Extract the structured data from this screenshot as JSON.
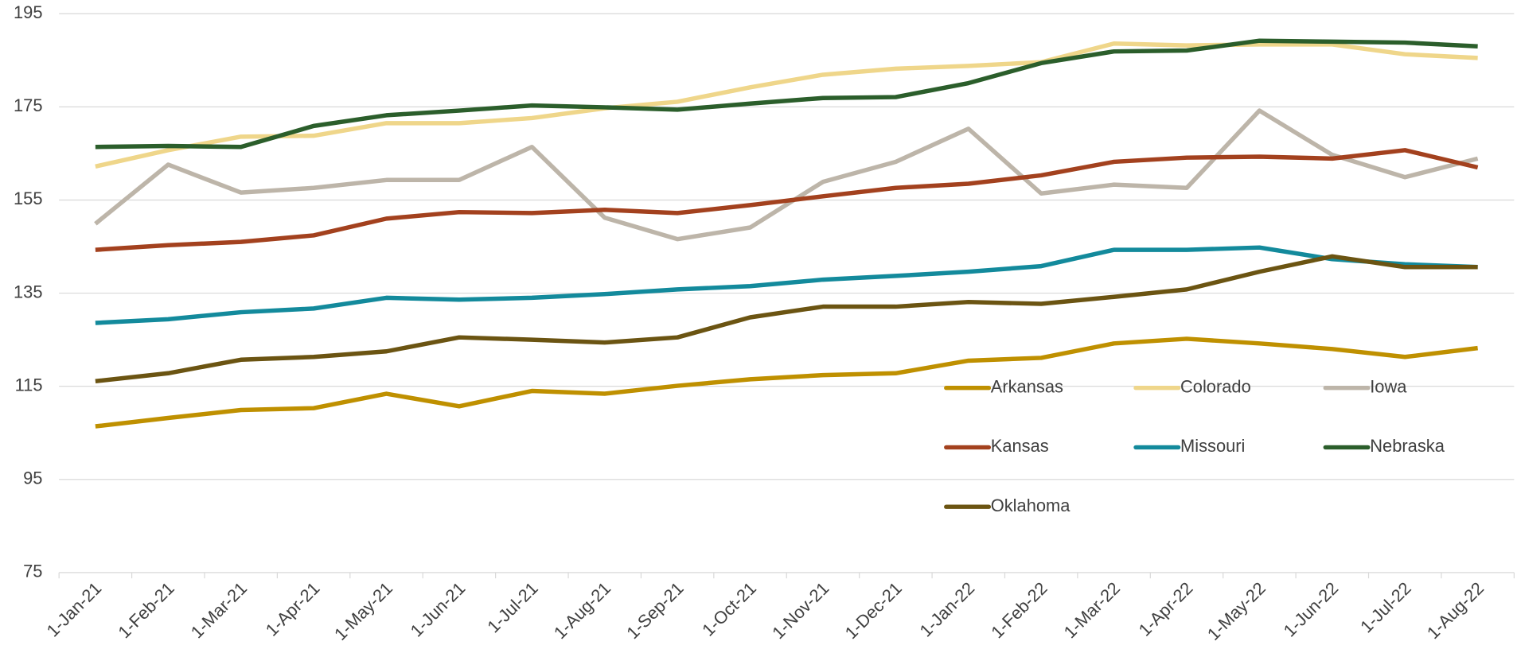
{
  "chart_data": {
    "type": "line",
    "categories": [
      "1-Jan-21",
      "1-Feb-21",
      "1-Mar-21",
      "1-Apr-21",
      "1-May-21",
      "1-Jun-21",
      "1-Jul-21",
      "1-Aug-21",
      "1-Sep-21",
      "1-Oct-21",
      "1-Nov-21",
      "1-Dec-21",
      "1-Jan-22",
      "1-Feb-22",
      "1-Mar-22",
      "1-Apr-22",
      "1-May-22",
      "1-Jun-22",
      "1-Jul-22",
      "1-Aug-22"
    ],
    "ylim": [
      75,
      195
    ],
    "yticks": [
      75,
      95,
      115,
      135,
      155,
      175,
      195
    ],
    "grid": true,
    "series": [
      {
        "name": "Arkansas",
        "color": "#bf9000",
        "values": [
          106.4,
          108.2,
          109.9,
          110.3,
          113.4,
          110.7,
          114.0,
          113.4,
          115.1,
          116.5,
          117.4,
          117.8,
          120.5,
          121.1,
          124.2,
          125.2,
          124.2,
          123.0,
          121.3,
          123.2
        ]
      },
      {
        "name": "Colorado",
        "color": "#efd68a",
        "values": [
          162.2,
          165.7,
          168.6,
          168.8,
          171.5,
          171.5,
          172.6,
          174.7,
          176.1,
          179.2,
          181.9,
          183.2,
          183.8,
          184.6,
          188.6,
          188.2,
          188.4,
          188.4,
          186.3,
          185.5
        ]
      },
      {
        "name": "Iowa",
        "color": "#bdb5a9",
        "values": [
          149.9,
          162.6,
          156.6,
          157.6,
          159.3,
          159.3,
          166.4,
          151.2,
          146.6,
          149.1,
          158.9,
          163.2,
          170.3,
          156.4,
          158.3,
          157.6,
          174.2,
          164.7,
          159.9,
          163.9
        ]
      },
      {
        "name": "Kansas",
        "color": "#a3411e",
        "values": [
          144.3,
          145.3,
          146.0,
          147.4,
          151.0,
          152.4,
          152.2,
          152.9,
          152.2,
          153.9,
          155.8,
          157.6,
          158.5,
          160.3,
          163.2,
          164.1,
          164.3,
          163.9,
          165.7,
          162.0
        ]
      },
      {
        "name": "Missouri",
        "color": "#138a9c",
        "values": [
          128.6,
          129.4,
          130.9,
          131.7,
          134.0,
          133.6,
          134.0,
          134.8,
          135.8,
          136.5,
          137.9,
          138.7,
          139.6,
          140.8,
          144.3,
          144.3,
          144.8,
          142.3,
          141.2,
          140.6
        ]
      },
      {
        "name": "Nebraska",
        "color": "#2b5e2b",
        "values": [
          166.4,
          166.6,
          166.4,
          170.9,
          173.2,
          174.2,
          175.3,
          174.9,
          174.4,
          175.7,
          176.9,
          177.1,
          180.1,
          184.4,
          186.9,
          187.1,
          189.2,
          189.0,
          188.8,
          188.0
        ]
      },
      {
        "name": "Oklahoma",
        "color": "#6b5412",
        "values": [
          116.1,
          117.8,
          120.7,
          121.3,
          122.5,
          125.5,
          125.0,
          124.4,
          125.5,
          129.8,
          132.1,
          132.1,
          133.1,
          132.7,
          134.2,
          135.8,
          139.6,
          142.9,
          140.6,
          140.6
        ]
      }
    ]
  }
}
